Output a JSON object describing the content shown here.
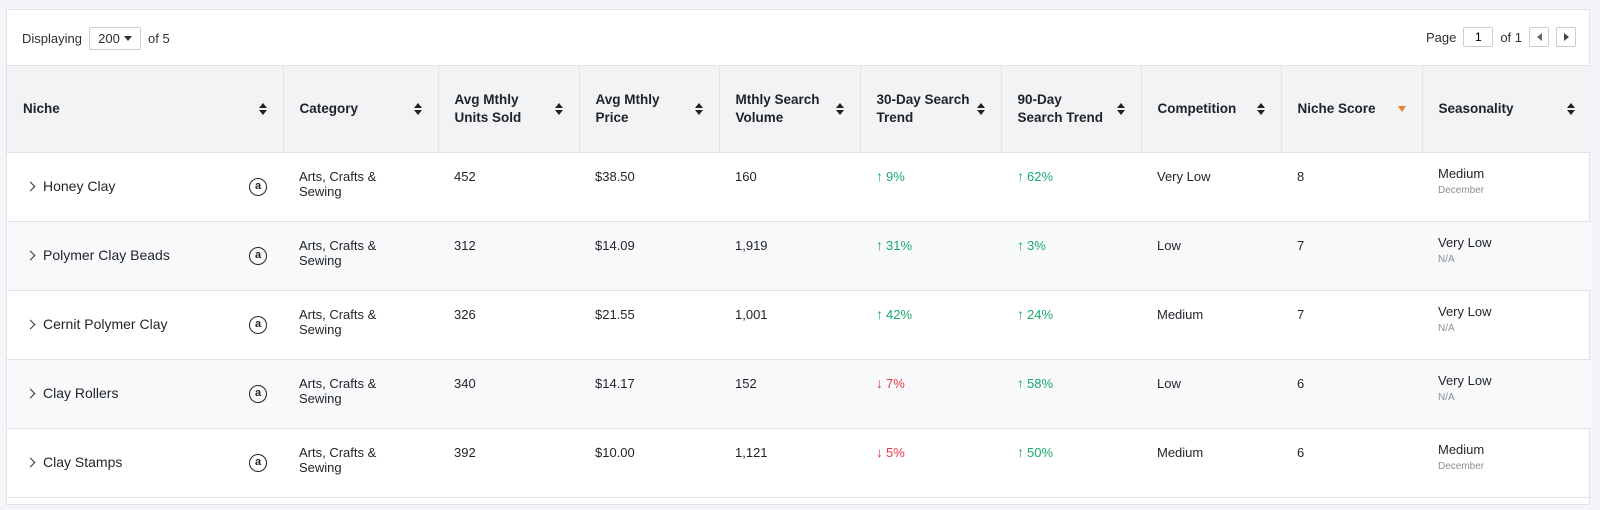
{
  "toolbar": {
    "displaying_label": "Displaying",
    "per_page_value": "200",
    "of_total": "of 5",
    "page_label": "Page",
    "page_value": "1",
    "page_of": "of 1"
  },
  "columns": [
    {
      "key": "niche",
      "label": "Niche"
    },
    {
      "key": "category",
      "label": "Category"
    },
    {
      "key": "units",
      "label": "Avg Mthly Units Sold"
    },
    {
      "key": "price",
      "label": "Avg Mthly Price"
    },
    {
      "key": "volume",
      "label": "Mthly Search Volume"
    },
    {
      "key": "trend30",
      "label": "30-Day Search Trend"
    },
    {
      "key": "trend90",
      "label": "90-Day Search Trend"
    },
    {
      "key": "competition",
      "label": "Competition"
    },
    {
      "key": "score",
      "label": "Niche Score"
    },
    {
      "key": "seasonality",
      "label": "Seasonality"
    }
  ],
  "rows": [
    {
      "niche": "Honey Clay",
      "category": "Arts, Crafts & Sewing",
      "units": "452",
      "price": "$38.50",
      "volume": "160",
      "trend30": {
        "dir": "up",
        "value": "9%"
      },
      "trend90": {
        "dir": "up",
        "value": "62%"
      },
      "competition": "Very Low",
      "score": "8",
      "season": "Medium",
      "season_sub": "December"
    },
    {
      "niche": "Polymer Clay Beads",
      "category": "Arts, Crafts & Sewing",
      "units": "312",
      "price": "$14.09",
      "volume": "1,919",
      "trend30": {
        "dir": "up",
        "value": "31%"
      },
      "trend90": {
        "dir": "up",
        "value": "3%"
      },
      "competition": "Low",
      "score": "7",
      "season": "Very Low",
      "season_sub": "N/A"
    },
    {
      "niche": "Cernit Polymer Clay",
      "category": "Arts, Crafts & Sewing",
      "units": "326",
      "price": "$21.55",
      "volume": "1,001",
      "trend30": {
        "dir": "up",
        "value": "42%"
      },
      "trend90": {
        "dir": "up",
        "value": "24%"
      },
      "competition": "Medium",
      "score": "7",
      "season": "Very Low",
      "season_sub": "N/A"
    },
    {
      "niche": "Clay Rollers",
      "category": "Arts, Crafts & Sewing",
      "units": "340",
      "price": "$14.17",
      "volume": "152",
      "trend30": {
        "dir": "down",
        "value": "7%"
      },
      "trend90": {
        "dir": "up",
        "value": "58%"
      },
      "competition": "Low",
      "score": "6",
      "season": "Very Low",
      "season_sub": "N/A"
    },
    {
      "niche": "Clay Stamps",
      "category": "Arts, Crafts & Sewing",
      "units": "392",
      "price": "$10.00",
      "volume": "1,121",
      "trend30": {
        "dir": "down",
        "value": "5%"
      },
      "trend90": {
        "dir": "up",
        "value": "50%"
      },
      "competition": "Medium",
      "score": "6",
      "season": "Medium",
      "season_sub": "December"
    }
  ],
  "icons": {
    "expand": "chevron-right-icon",
    "marketplace": "amazon-icon",
    "trend_up": "arrow-up-icon",
    "trend_down": "arrow-down-icon"
  },
  "colors": {
    "trend_up": "#1aa86c",
    "trend_down": "#e5384a",
    "sort_active": "#f07e26"
  }
}
